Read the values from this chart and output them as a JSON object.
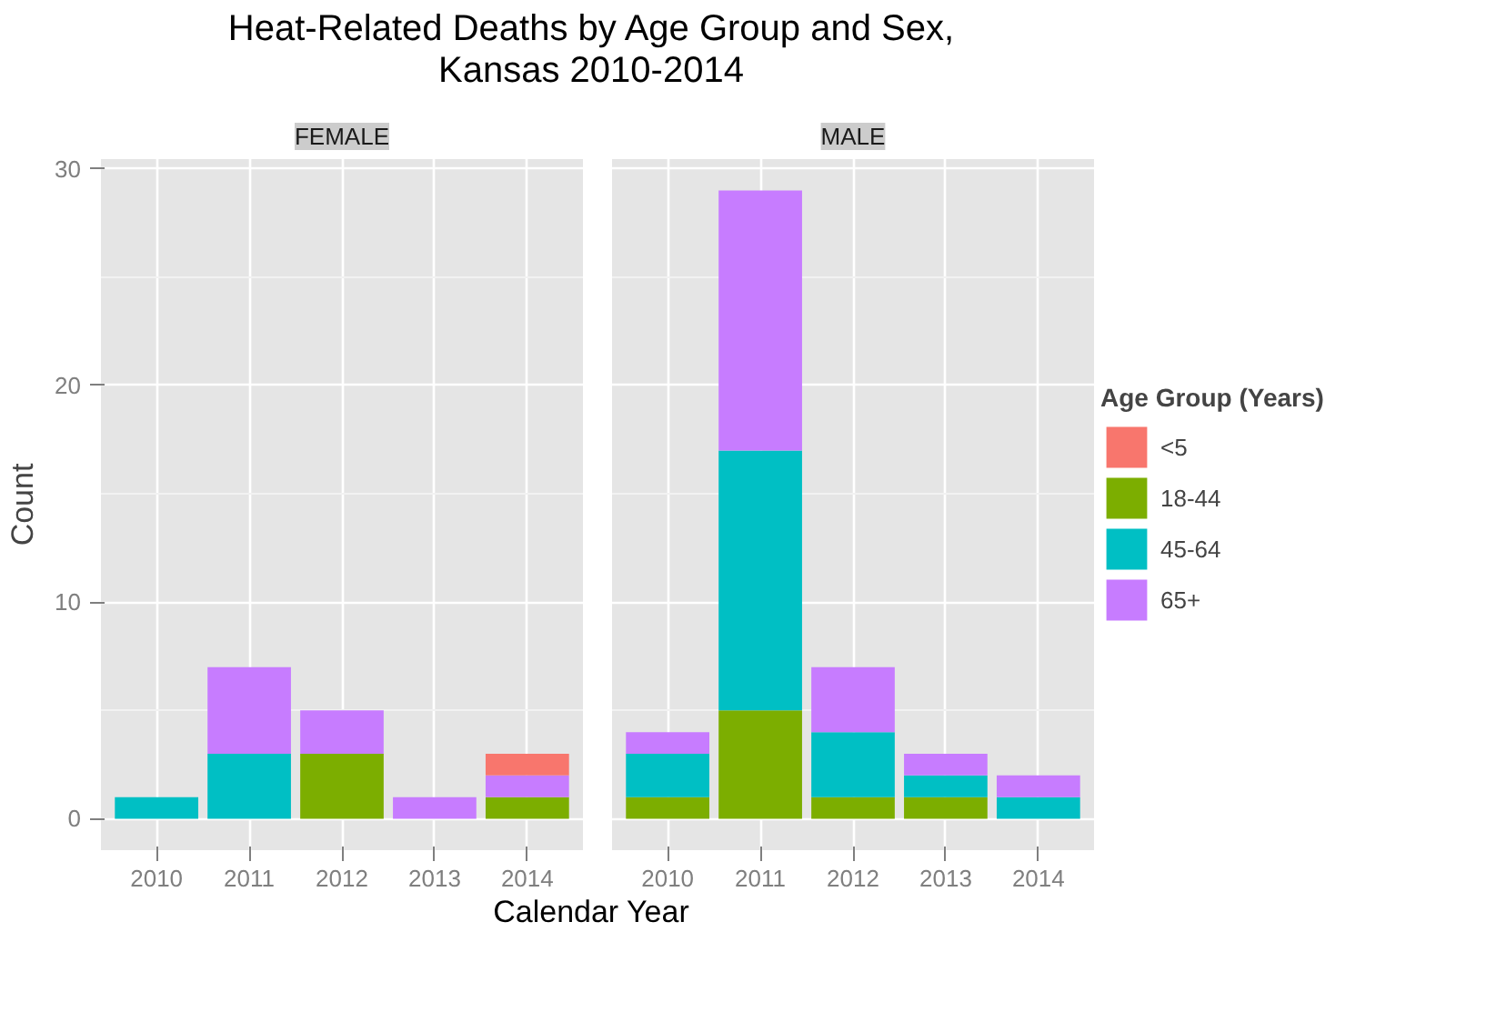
{
  "chart_data": [
    {
      "type": "bar",
      "title": "Heat-Related Deaths by Age Group and Sex,\nKansas 2010-2014",
      "subtitle": "FEMALE",
      "xlabel": "Calendar Year",
      "ylabel": "Count",
      "categories": [
        "2010",
        "2011",
        "2012",
        "2013",
        "2014"
      ],
      "stacked": true,
      "ylim": [
        -1.45,
        30.45
      ],
      "yticks": [
        0,
        10,
        20,
        30
      ],
      "grid": true,
      "series": [
        {
          "color": "#7cae00",
          "values": [
            null,
            null,
            3,
            null,
            1
          ]
        },
        {
          "color": "#00bfc4",
          "values": [
            1,
            3,
            null,
            null,
            null
          ]
        },
        {
          "color": "#c77cff",
          "values": [
            null,
            4,
            2,
            1,
            1
          ]
        },
        {
          "color": "#f8766d",
          "values": [
            null,
            null,
            null,
            null,
            1
          ]
        }
      ]
    },
    {
      "type": "bar",
      "subtitle": "MALE",
      "categories": [
        "2010",
        "2011",
        "2012",
        "2013",
        "2014"
      ],
      "stacked": true,
      "ylim": [
        -1.45,
        30.45
      ],
      "yticks": [
        0,
        10,
        20,
        30
      ],
      "grid": true,
      "tick_labels": "x",
      "legend": "right",
      "legend_title": "Age Group (Years)",
      "series": [
        {
          "name": "<5",
          "color": "#f8766d",
          "values": [
            null,
            null,
            null,
            null,
            null
          ]
        },
        {
          "name": "18-44",
          "color": "#7cae00",
          "values": [
            1,
            5,
            1,
            1,
            null
          ]
        },
        {
          "name": "45-64",
          "color": "#00bfc4",
          "values": [
            2,
            12,
            3,
            1,
            1
          ]
        },
        {
          "name": "65+",
          "color": "#c77cff",
          "values": [
            1,
            12,
            3,
            1,
            1
          ]
        }
      ]
    }
  ]
}
